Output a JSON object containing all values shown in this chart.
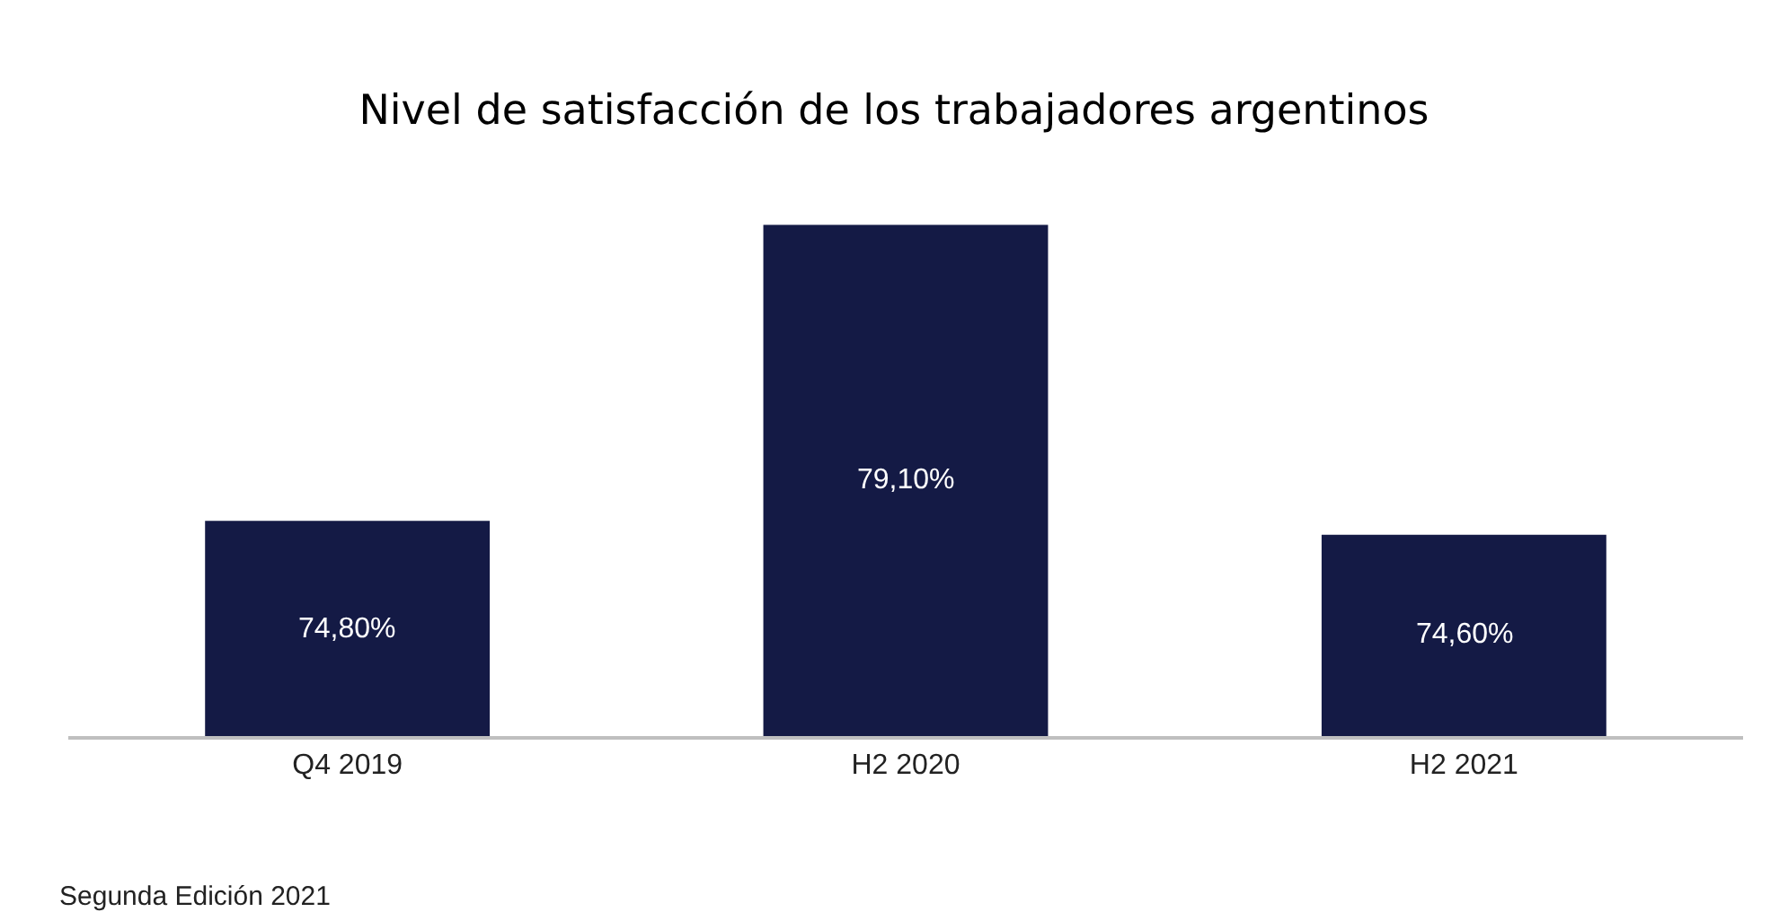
{
  "chart_data": {
    "type": "bar",
    "title": "Nivel de satisfacción de los trabajadores argentinos",
    "categories": [
      "Q4 2019",
      "H2 2020",
      "H2 2021"
    ],
    "values": [
      74.8,
      79.1,
      74.6
    ],
    "value_labels": [
      "74,80%",
      "79,10%",
      "74,60%"
    ],
    "color": "#141a45",
    "tick_labels": "x",
    "annotations": [
      "Segunda Edición 2021"
    ]
  }
}
